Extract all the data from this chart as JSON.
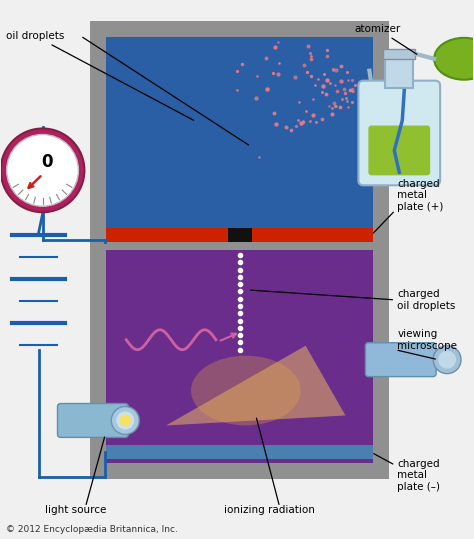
{
  "copyright": "© 2012 Encyclopædia Britannica, Inc.",
  "upper_chamber_color": "#2a5fa5",
  "lower_chamber_color": "#6b2d8b",
  "frame_color": "#909090",
  "top_plate_color": "#cc2200",
  "bottom_plate_color": "#4a80b0",
  "oil_drop_color": "#e87a8a",
  "wire_color": "#1a5faa",
  "meter_ring_color": "#b02060",
  "meter_face_color": "#ffffff",
  "needle_color": "#cc2020",
  "scope_color": "#90b8d8",
  "lamp_color": "#8ab8d0",
  "bottle_color": "#d0e8f0",
  "liquid_color": "#90c030",
  "bulb_color": "#78b020",
  "cone_color": "#f0c060",
  "squiggle_color": "#d060a0",
  "dot_color": "#ffffff",
  "bg_color": "#f0f0f0",
  "label_fs": 7.5,
  "voltage_label": "0",
  "labels": {
    "oil_droplets": "oil droplets",
    "atomizer": "atomizer",
    "charged_metal_plus": "charged\nmetal\nplate (+)",
    "charged_oil": "charged\noil droplets",
    "viewing_scope": "viewing\nmicroscope",
    "charged_metal_minus": "charged\nmetal\nplate (–)",
    "light_source": "light source",
    "ionizing": "ionizing radiation"
  }
}
